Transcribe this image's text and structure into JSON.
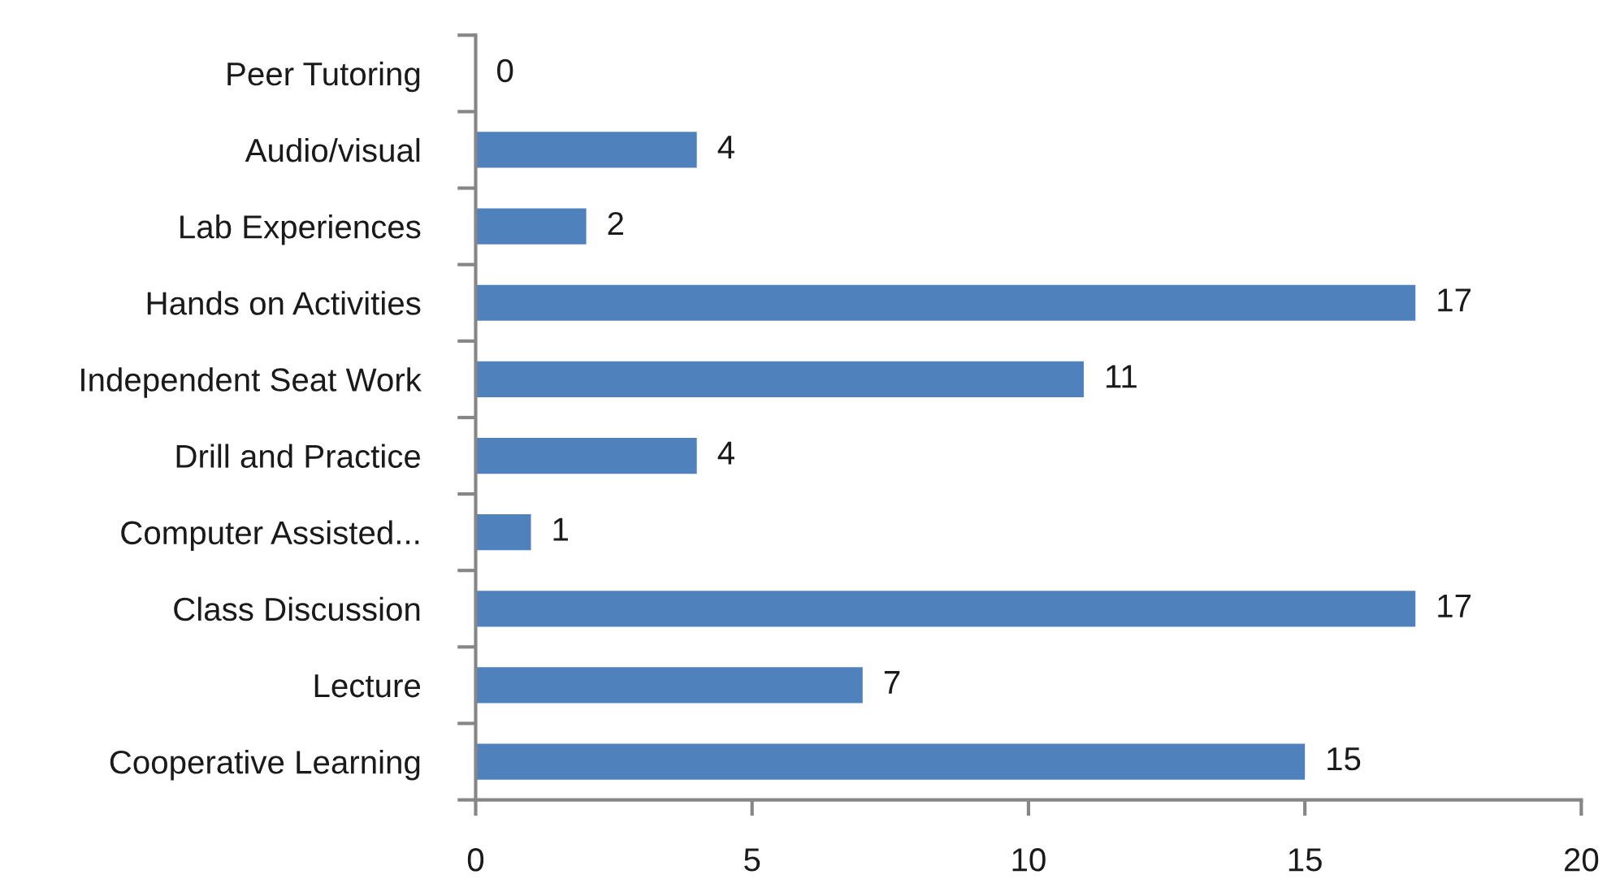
{
  "chart_data": {
    "type": "bar",
    "orientation": "horizontal",
    "categories": [
      "Peer Tutoring",
      "Audio/visual",
      "Lab Experiences",
      "Hands on Activities",
      "Independent Seat Work",
      "Drill and Practice",
      "Computer Assisted...",
      "Class Discussion",
      "Lecture",
      "Cooperative Learning"
    ],
    "values": [
      0,
      4,
      2,
      17,
      11,
      4,
      1,
      17,
      7,
      15
    ],
    "color": "#4f81bd",
    "xlim": [
      0,
      20
    ],
    "xticks": [
      0,
      5,
      10,
      15,
      20
    ],
    "grid": false,
    "data_labels": true
  }
}
